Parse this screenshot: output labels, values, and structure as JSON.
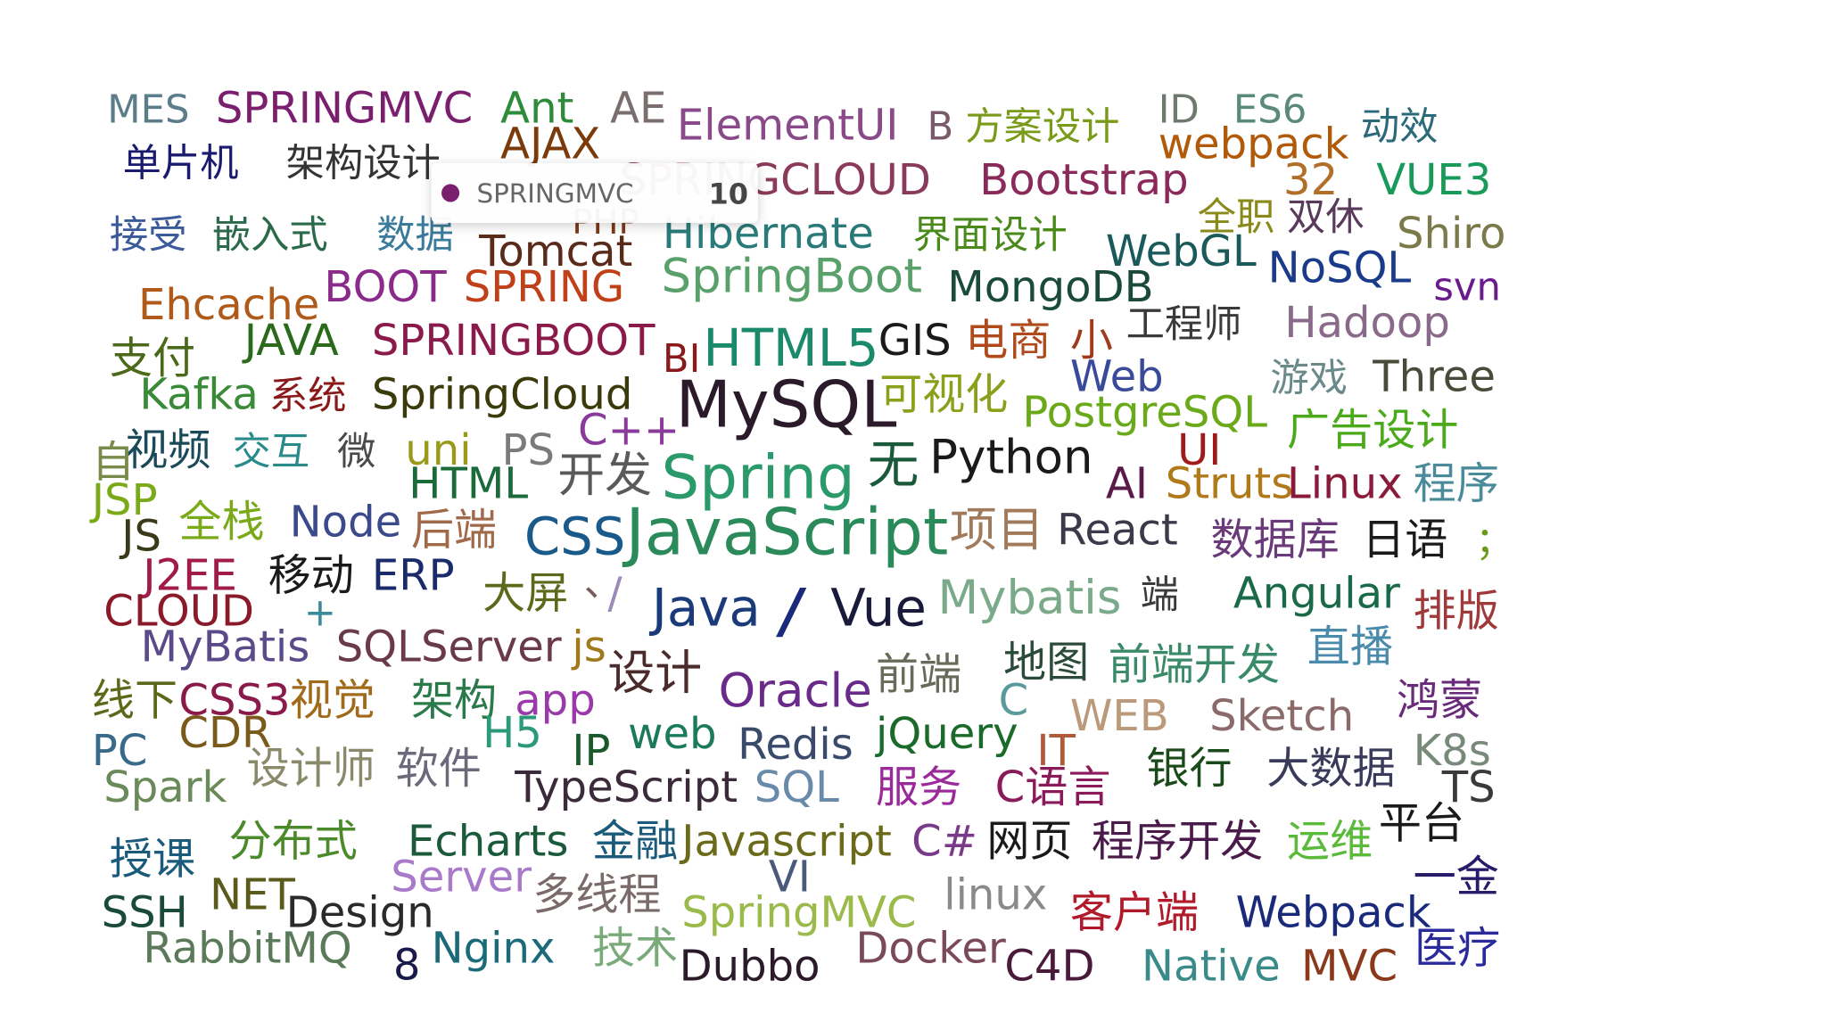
{
  "chart_data": {
    "type": "wordcloud",
    "words": [
      {
        "name": "MES",
        "value": 9,
        "color": "#5b7d8a"
      },
      {
        "name": "SPRINGMVC",
        "value": 10,
        "color": "#7a1e6e"
      },
      {
        "name": "Ant",
        "value": 10,
        "color": "#2e8b3a"
      },
      {
        "name": "AE",
        "value": 10,
        "color": "#7a6e6e"
      },
      {
        "name": "ElementUI",
        "value": 10,
        "color": "#8a4a8a"
      },
      {
        "name": "B",
        "value": 9,
        "color": "#7a5a6a"
      },
      {
        "name": "方案设计",
        "value": 9,
        "color": "#7a9a1a"
      },
      {
        "name": "ID",
        "value": 9,
        "color": "#6e7a6e"
      },
      {
        "name": "ES6",
        "value": 9,
        "color": "#5a8a7a"
      },
      {
        "name": "动效",
        "value": 9,
        "color": "#2a6a7a"
      },
      {
        "name": "单片机",
        "value": 9,
        "color": "#1a1a6e"
      },
      {
        "name": "架构设计",
        "value": 9,
        "color": "#333333"
      },
      {
        "name": "AJAX",
        "value": 10,
        "color": "#7a3a0a"
      },
      {
        "name": "webpack",
        "value": 10,
        "color": "#b05a0a"
      },
      {
        "name": "SPRINGCLOUD",
        "value": 10,
        "color": "#8a3a5a"
      },
      {
        "name": "Bootstrap",
        "value": 10,
        "color": "#8a2a5a"
      },
      {
        "name": "32",
        "value": 10,
        "color": "#b0702a"
      },
      {
        "name": "VUE3",
        "value": 10,
        "color": "#1a9a5a"
      },
      {
        "name": "接受",
        "value": 9,
        "color": "#3a5a9a"
      },
      {
        "name": "嵌入式",
        "value": 9,
        "color": "#2a6a4a"
      },
      {
        "name": "数据",
        "value": 9,
        "color": "#3a7a9a"
      },
      {
        "name": "PHP",
        "value": 8,
        "color": "#7a3a1a"
      },
      {
        "name": "Hibernate",
        "value": 10,
        "color": "#2a7a7a"
      },
      {
        "name": "界面设计",
        "value": 9,
        "color": "#4a8a1a"
      },
      {
        "name": "全职",
        "value": 9,
        "color": "#8a8a1a"
      },
      {
        "name": "双休",
        "value": 9,
        "color": "#5a3a5a"
      },
      {
        "name": "Shiro",
        "value": 10,
        "color": "#7a7a4a"
      },
      {
        "name": "Tomcat",
        "value": 10,
        "color": "#5a2a1a"
      },
      {
        "name": "WebGL",
        "value": 10,
        "color": "#1a5a5a"
      },
      {
        "name": "NoSQL",
        "value": 10,
        "color": "#1a3a8a"
      },
      {
        "name": "svn",
        "value": 9,
        "color": "#6a1a8a"
      },
      {
        "name": "SpringBoot",
        "value": 11,
        "color": "#5aa06a"
      },
      {
        "name": "MongoDB",
        "value": 10,
        "color": "#1a4a3a"
      },
      {
        "name": "Ehcache",
        "value": 10,
        "color": "#b05a1a"
      },
      {
        "name": "BOOT",
        "value": 10,
        "color": "#8a2a8a"
      },
      {
        "name": "SPRING",
        "value": 10,
        "color": "#c0401a"
      },
      {
        "name": "电商",
        "value": 10,
        "color": "#b04a1a"
      },
      {
        "name": "小",
        "value": 10,
        "color": "#a03a1a"
      },
      {
        "name": "工程师",
        "value": 9,
        "color": "#3a3a3a"
      },
      {
        "name": "Hadoop",
        "value": 10,
        "color": "#8a6a8a"
      },
      {
        "name": "支付",
        "value": 10,
        "color": "#4a6a1a"
      },
      {
        "name": "JAVA",
        "value": 10,
        "color": "#2a6a1a"
      },
      {
        "name": "SPRINGBOOT",
        "value": 10,
        "color": "#8a1a4a"
      },
      {
        "name": "BI",
        "value": 9,
        "color": "#8a1a1a"
      },
      {
        "name": "HTML5",
        "value": 12,
        "color": "#1a8a6a"
      },
      {
        "name": "GIS",
        "value": 10,
        "color": "#1a1a1a"
      },
      {
        "name": "Kafka",
        "value": 10,
        "color": "#3a8a3a"
      },
      {
        "name": "系统",
        "value": 9,
        "color": "#8a1a1a"
      },
      {
        "name": "SpringCloud",
        "value": 10,
        "color": "#3a3a0a"
      },
      {
        "name": "MySQL",
        "value": 15,
        "color": "#2a1a2a"
      },
      {
        "name": "可视化",
        "value": 10,
        "color": "#8aa01a"
      },
      {
        "name": "Web",
        "value": 10,
        "color": "#3a4a9a"
      },
      {
        "name": "游戏",
        "value": 9,
        "color": "#6a8a8a"
      },
      {
        "name": "Three",
        "value": 10,
        "color": "#4a4a3a"
      },
      {
        "name": "PostgreSQL",
        "value": 10,
        "color": "#6aaa1a"
      },
      {
        "name": "广告设计",
        "value": 10,
        "color": "#4aaa1a"
      },
      {
        "name": "视频",
        "value": 10,
        "color": "#1a4a5a"
      },
      {
        "name": "交互",
        "value": 9,
        "color": "#2a8a8a"
      },
      {
        "name": "微",
        "value": 9,
        "color": "#4a4a4a"
      },
      {
        "name": "uni",
        "value": 10,
        "color": "#9a9a1a"
      },
      {
        "name": "PS",
        "value": 10,
        "color": "#7a7a7a"
      },
      {
        "name": "C++",
        "value": 10,
        "color": "#8a3a9a"
      },
      {
        "name": "自",
        "value": 10,
        "color": "#7a8a4a"
      },
      {
        "name": "无",
        "value": 12,
        "color": "#1a5a3a"
      },
      {
        "name": "Python",
        "value": 11,
        "color": "#1a1a1a"
      },
      {
        "name": "UI",
        "value": 10,
        "color": "#a01a1a"
      },
      {
        "name": "JSP",
        "value": 10,
        "color": "#7aaa1a"
      },
      {
        "name": "HTML",
        "value": 10,
        "color": "#1a6a3a"
      },
      {
        "name": "开发",
        "value": 11,
        "color": "#5a5a5a"
      },
      {
        "name": "Spring",
        "value": 14,
        "color": "#2a9a6a"
      },
      {
        "name": "AI",
        "value": 10,
        "color": "#5a1a4a"
      },
      {
        "name": "Struts",
        "value": 10,
        "color": "#b07a1a"
      },
      {
        "name": "Linux",
        "value": 10,
        "color": "#8a1a3a"
      },
      {
        "name": "程序",
        "value": 10,
        "color": "#4a8a9a"
      },
      {
        "name": "JS",
        "value": 10,
        "color": "#3a3a1a"
      },
      {
        "name": "全栈",
        "value": 10,
        "color": "#7aaa1a"
      },
      {
        "name": "Node",
        "value": 10,
        "color": "#3a4a8a"
      },
      {
        "name": "后端",
        "value": 10,
        "color": "#a06a4a"
      },
      {
        "name": "CSS",
        "value": 12,
        "color": "#1a5a8a"
      },
      {
        "name": "JavaScript",
        "value": 15,
        "color": "#2a8a5a"
      },
      {
        "name": "项目",
        "value": 11,
        "color": "#a07a5a"
      },
      {
        "name": "React",
        "value": 10,
        "color": "#3a3a4a"
      },
      {
        "name": "数据库",
        "value": 10,
        "color": "#6a3a7a"
      },
      {
        "name": "日语",
        "value": 10,
        "color": "#1a1a1a"
      },
      {
        "name": "；",
        "value": 9,
        "color": "#6a9a1a"
      },
      {
        "name": "J2EE",
        "value": 10,
        "color": "#a01a4a"
      },
      {
        "name": "移动",
        "value": 10,
        "color": "#1a1a1a"
      },
      {
        "name": "ERP",
        "value": 10,
        "color": "#1a2a6a"
      },
      {
        "name": "大屏",
        "value": 10,
        "color": "#5a6a1a"
      },
      {
        "name": "、",
        "value": 9,
        "color": "#7a5a5a"
      },
      {
        "name": "/",
        "value": 10,
        "color": "#9a8aba"
      },
      {
        "name": "Java",
        "value": 12,
        "color": "#1a3a7a"
      },
      {
        "name": "/",
        "value": 14,
        "color": "#1a2a7a"
      },
      {
        "name": "Vue",
        "value": 12,
        "color": "#1a1a3a"
      },
      {
        "name": "Mybatis",
        "value": 11,
        "color": "#7aaa8a"
      },
      {
        "name": "端",
        "value": 9,
        "color": "#3a3a3a"
      },
      {
        "name": "Angular",
        "value": 10,
        "color": "#1a6a4a"
      },
      {
        "name": "排版",
        "value": 10,
        "color": "#a03a3a"
      },
      {
        "name": "CLOUD",
        "value": 10,
        "color": "#8a1a2a"
      },
      {
        "name": "+",
        "value": 9,
        "color": "#3a8a9a"
      },
      {
        "name": "MyBatis",
        "value": 10,
        "color": "#5a4a8a"
      },
      {
        "name": "SQLServer",
        "value": 10,
        "color": "#6a3a4a"
      },
      {
        "name": "js",
        "value": 10,
        "color": "#a07a1a"
      },
      {
        "name": "设计",
        "value": 11,
        "color": "#4a2a2a"
      },
      {
        "name": "Oracle",
        "value": 11,
        "color": "#6a2a8a"
      },
      {
        "name": "前端",
        "value": 10,
        "color": "#6a6a5a"
      },
      {
        "name": "地图",
        "value": 10,
        "color": "#2a4a3a"
      },
      {
        "name": "前端开发",
        "value": 10,
        "color": "#3a8a6a"
      },
      {
        "name": "直播",
        "value": 10,
        "color": "#4a8aaa"
      },
      {
        "name": "线下",
        "value": 10,
        "color": "#5a6a1a"
      },
      {
        "name": "CSS3",
        "value": 10,
        "color": "#8a1a4a"
      },
      {
        "name": "视觉",
        "value": 10,
        "color": "#a06a1a"
      },
      {
        "name": "架构",
        "value": 10,
        "color": "#2a7a4a"
      },
      {
        "name": "app",
        "value": 10,
        "color": "#9a3aaa"
      },
      {
        "name": "C",
        "value": 10,
        "color": "#5a9a9a"
      },
      {
        "name": "WEB",
        "value": 10,
        "color": "#ba9a7a"
      },
      {
        "name": "Sketch",
        "value": 10,
        "color": "#8a6a6a"
      },
      {
        "name": "鸿蒙",
        "value": 10,
        "color": "#6a2a7a"
      },
      {
        "name": "CDR",
        "value": 10,
        "color": "#7a5a1a"
      },
      {
        "name": "H5",
        "value": 10,
        "color": "#2a9a7a"
      },
      {
        "name": "IP",
        "value": 10,
        "color": "#1a5a2a"
      },
      {
        "name": "web",
        "value": 10,
        "color": "#1a7a5a"
      },
      {
        "name": "Redis",
        "value": 10,
        "color": "#3a4a6a"
      },
      {
        "name": "jQuery",
        "value": 10,
        "color": "#1a6a2a"
      },
      {
        "name": "IT",
        "value": 10,
        "color": "#b05a3a"
      },
      {
        "name": "PC",
        "value": 10,
        "color": "#3a6a8a"
      },
      {
        "name": "K8s",
        "value": 10,
        "color": "#7a8a7a"
      },
      {
        "name": "设计师",
        "value": 10,
        "color": "#8a8a6a"
      },
      {
        "name": "软件",
        "value": 10,
        "color": "#6a6a7a"
      },
      {
        "name": "银行",
        "value": 10,
        "color": "#1a4a1a"
      },
      {
        "name": "大数据",
        "value": 10,
        "color": "#3a3a5a"
      },
      {
        "name": "Spark",
        "value": 10,
        "color": "#6a8a5a"
      },
      {
        "name": "TypeScript",
        "value": 10,
        "color": "#3a2a3a"
      },
      {
        "name": "SQL",
        "value": 10,
        "color": "#6a8aaa"
      },
      {
        "name": "服务",
        "value": 10,
        "color": "#9a2a9a"
      },
      {
        "name": "C语言",
        "value": 10,
        "color": "#8a1a5a"
      },
      {
        "name": "TS",
        "value": 10,
        "color": "#3a3a3a"
      },
      {
        "name": "平台",
        "value": 10,
        "color": "#1a1a1a"
      },
      {
        "name": "分布式",
        "value": 10,
        "color": "#4a8a2a"
      },
      {
        "name": "Echarts",
        "value": 10,
        "color": "#1a5a3a"
      },
      {
        "name": "金融",
        "value": 10,
        "color": "#1a5a7a"
      },
      {
        "name": "Javascript",
        "value": 10,
        "color": "#6a6a1a"
      },
      {
        "name": "C#",
        "value": 10,
        "color": "#7a3a8a"
      },
      {
        "name": "网页",
        "value": 10,
        "color": "#1a1a1a"
      },
      {
        "name": "程序开发",
        "value": 10,
        "color": "#4a1a4a"
      },
      {
        "name": "运维",
        "value": 10,
        "color": "#5aba3a"
      },
      {
        "name": "授课",
        "value": 10,
        "color": "#1a5a7a"
      },
      {
        "name": "Server",
        "value": 10,
        "color": "#aa7aca"
      },
      {
        "name": "多线程",
        "value": 10,
        "color": "#7a6a6a"
      },
      {
        "name": "VI",
        "value": 10,
        "color": "#4a5a7a"
      },
      {
        "name": "linux",
        "value": 10,
        "color": "#8a8a8a"
      },
      {
        "name": "一金",
        "value": 10,
        "color": "#2a1a6a"
      },
      {
        "name": "NET",
        "value": 10,
        "color": "#5a5a1a"
      },
      {
        "name": "SSH",
        "value": 10,
        "color": "#1a4a3a"
      },
      {
        "name": "Design",
        "value": 10,
        "color": "#2a2a2a"
      },
      {
        "name": "SpringMVC",
        "value": 10,
        "color": "#9aba4a"
      },
      {
        "name": "客户端",
        "value": 10,
        "color": "#b01a2a"
      },
      {
        "name": "Webpack",
        "value": 10,
        "color": "#1a2a7a"
      },
      {
        "name": "RabbitMQ",
        "value": 10,
        "color": "#5a7a5a"
      },
      {
        "name": "8",
        "value": 10,
        "color": "#1a1a4a"
      },
      {
        "name": "Nginx",
        "value": 10,
        "color": "#1a6a7a"
      },
      {
        "name": "技术",
        "value": 10,
        "color": "#7aaa7a"
      },
      {
        "name": "Docker",
        "value": 10,
        "color": "#7a4a5a"
      },
      {
        "name": "医疗",
        "value": 10,
        "color": "#2a2a9a"
      },
      {
        "name": "Dubbo",
        "value": 10,
        "color": "#2a1a2a"
      },
      {
        "name": "C4D",
        "value": 10,
        "color": "#4a1a3a"
      },
      {
        "name": "Native",
        "value": 10,
        "color": "#3a8a8a"
      },
      {
        "name": "MVC",
        "value": 10,
        "color": "#8a3a1a"
      }
    ]
  }
}
